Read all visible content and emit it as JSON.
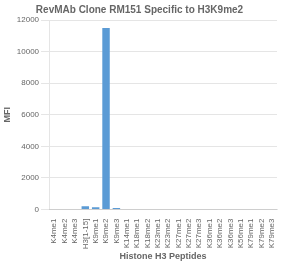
{
  "chart_data": {
    "type": "bar",
    "title": "RevMAb Clone RM151 Specific to H3K9me2",
    "xlabel": "Histone H3 Peptides",
    "ylabel": "MFI",
    "categories": [
      "K4me1",
      "K4me2",
      "K4me3",
      "H3[1-15]",
      "K9me1",
      "K9me2",
      "K9me3",
      "K14me1",
      "K18me1",
      "K18me2",
      "K23me1",
      "K23me2",
      "K27me1",
      "K27me2",
      "K27me3",
      "K36me1",
      "K36me2",
      "K36me3",
      "K56me1",
      "K79me1",
      "K79me2",
      "K79me3"
    ],
    "values": [
      0,
      0,
      0,
      200,
      150,
      11500,
      100,
      0,
      0,
      0,
      0,
      0,
      0,
      0,
      0,
      0,
      0,
      0,
      0,
      0,
      0,
      0
    ],
    "color": "#5b9bd5",
    "ylim": [
      0,
      12000
    ],
    "yticks": [
      0,
      2000,
      4000,
      6000,
      8000,
      10000,
      12000
    ],
    "grid": true
  }
}
